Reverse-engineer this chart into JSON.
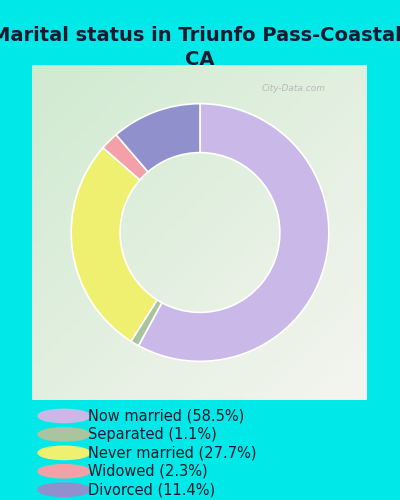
{
  "title": "Marital status in Triunfo Pass-Coastal,\nCA",
  "slices": [
    58.5,
    1.1,
    27.7,
    2.3,
    11.4
  ],
  "labels": [
    "Now married (58.5%)",
    "Separated (1.1%)",
    "Never married (27.7%)",
    "Widowed (2.3%)",
    "Divorced (11.4%)"
  ],
  "colors": [
    "#c9b8e8",
    "#aac4a0",
    "#f0f070",
    "#f4a0a8",
    "#9090cc"
  ],
  "background_color": "#00e8e8",
  "title_fontsize": 14,
  "legend_fontsize": 10.5,
  "donut_width": 0.38
}
